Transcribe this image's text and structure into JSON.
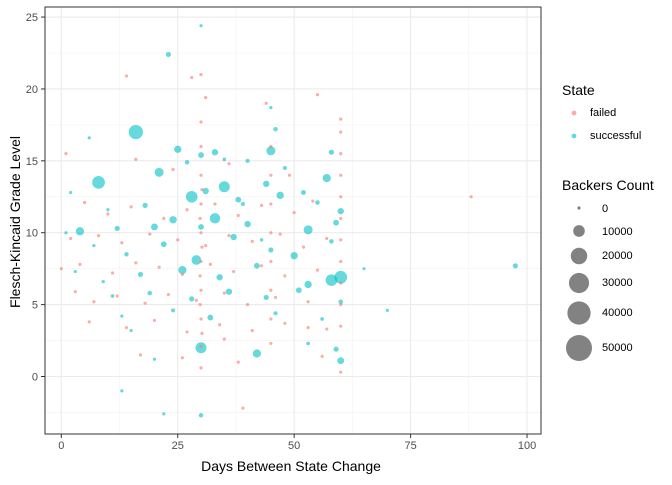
{
  "chart_data": {
    "type": "scatter",
    "title": "",
    "xlabel": "Days Between State Change",
    "ylabel": "Flesch-Kincaid Grade Level",
    "xlim": [
      -3.5,
      103
    ],
    "ylim": [
      -4,
      25.7
    ],
    "x_ticks": [
      0,
      25,
      50,
      75,
      100
    ],
    "y_ticks": [
      0,
      5,
      10,
      15,
      20,
      25
    ],
    "grid": true,
    "theme": "bw",
    "point_alpha": 0.6,
    "colors": {
      "failed": "#F8766D",
      "successful": "#00BFC4",
      "size_legend": "#4d4d4d"
    },
    "legend_position": "right",
    "color_legend": {
      "title": "State",
      "entries": [
        "failed",
        "successful"
      ]
    },
    "size_legend": {
      "title": "Backers Count",
      "entries": [
        "0",
        "10000",
        "20000",
        "30000",
        "40000",
        "50000"
      ],
      "values": [
        0,
        10000,
        20000,
        30000,
        40000,
        50000
      ]
    },
    "series": [
      {
        "name": "successful",
        "points": [
          [
            30,
            24.4,
            100
          ],
          [
            23,
            22.4,
            2000
          ],
          [
            45,
            18.7,
            800
          ],
          [
            46,
            17.2,
            1500
          ],
          [
            16,
            17.0,
            15000
          ],
          [
            6,
            16.6,
            200
          ],
          [
            25,
            15.8,
            4000
          ],
          [
            30,
            15.4,
            2500
          ],
          [
            33,
            15.6,
            3000
          ],
          [
            40,
            15.0,
            1200
          ],
          [
            45,
            15.7,
            6000
          ],
          [
            58,
            15.6,
            2000
          ],
          [
            8,
            13.5,
            12000
          ],
          [
            21,
            14.2,
            6000
          ],
          [
            35,
            13.2,
            9000
          ],
          [
            44,
            13.4,
            3000
          ],
          [
            57,
            13.8,
            5000
          ],
          [
            2,
            12.8,
            400
          ],
          [
            10,
            11.6,
            300
          ],
          [
            18,
            11.9,
            2000
          ],
          [
            28,
            12.5,
            10000
          ],
          [
            31,
            12.9,
            3000
          ],
          [
            38,
            12.3,
            2500
          ],
          [
            47,
            12.6,
            4000
          ],
          [
            55,
            12.1,
            1500
          ],
          [
            60,
            11.5,
            3000
          ],
          [
            4,
            10.1,
            5000
          ],
          [
            12,
            10.3,
            2000
          ],
          [
            20,
            10.4,
            3500
          ],
          [
            24,
            10.9,
            4000
          ],
          [
            33,
            11.0,
            8000
          ],
          [
            40,
            10.6,
            3000
          ],
          [
            53,
            10.2,
            6000
          ],
          [
            59,
            10.7,
            2500
          ],
          [
            7,
            9.1,
            500
          ],
          [
            14,
            8.5,
            1500
          ],
          [
            22,
            9.2,
            2500
          ],
          [
            29,
            8.1,
            7000
          ],
          [
            37,
            9.7,
            3000
          ],
          [
            45,
            8.8,
            2000
          ],
          [
            50,
            8.4,
            4000
          ],
          [
            58,
            9.4,
            1500
          ],
          [
            3,
            7.3,
            300
          ],
          [
            9,
            6.6,
            800
          ],
          [
            17,
            7.1,
            2000
          ],
          [
            26,
            7.4,
            5000
          ],
          [
            34,
            6.9,
            3000
          ],
          [
            42,
            7.7,
            2500
          ],
          [
            53,
            6.4,
            4000
          ],
          [
            58,
            6.7,
            10000
          ],
          [
            60,
            6.9,
            12000
          ],
          [
            97.5,
            7.7,
            2000
          ],
          [
            70,
            4.6,
            150
          ],
          [
            11,
            5.6,
            1000
          ],
          [
            19,
            5.8,
            1500
          ],
          [
            28,
            5.4,
            2000
          ],
          [
            36,
            5.9,
            3000
          ],
          [
            44,
            5.5,
            2000
          ],
          [
            51,
            6.0,
            2500
          ],
          [
            60,
            5.2,
            1500
          ],
          [
            13,
            4.2,
            700
          ],
          [
            24,
            4.6,
            1200
          ],
          [
            32,
            4.1,
            2500
          ],
          [
            46,
            4.4,
            1200
          ],
          [
            56,
            4.0,
            1000
          ],
          [
            30,
            2.0,
            9000
          ],
          [
            42,
            1.6,
            5000
          ],
          [
            53,
            2.3,
            1000
          ],
          [
            59,
            1.9,
            2000
          ],
          [
            60,
            1.1,
            3500
          ],
          [
            15,
            3.2,
            200
          ],
          [
            20,
            1.2,
            300
          ],
          [
            13,
            -1.0,
            100
          ],
          [
            22,
            -2.6,
            100
          ],
          [
            30,
            -2.7,
            1500
          ],
          [
            35,
            15.1,
            1000
          ],
          [
            27,
            14.9,
            1500
          ],
          [
            48,
            14.5,
            1200
          ],
          [
            65,
            7.5,
            150
          ],
          [
            1,
            10.0,
            200
          ],
          [
            39,
            12.0,
            1200
          ],
          [
            52,
            12.8,
            1800
          ],
          [
            43,
            9.5,
            900
          ],
          [
            30,
            10.4,
            2500
          ]
        ]
      },
      {
        "name": "failed",
        "points": [
          [
            30,
            21.0,
            100
          ],
          [
            28,
            20.8,
            100
          ],
          [
            14,
            20.9,
            100
          ],
          [
            55,
            19.6,
            100
          ],
          [
            31,
            19.4,
            100
          ],
          [
            44,
            19.0,
            100
          ],
          [
            30,
            17.7,
            100
          ],
          [
            60,
            17.9,
            100
          ],
          [
            1,
            15.5,
            100
          ],
          [
            16,
            15.1,
            100
          ],
          [
            24,
            14.4,
            100
          ],
          [
            36,
            14.8,
            100
          ],
          [
            49,
            14.0,
            100
          ],
          [
            88,
            12.5,
            100
          ],
          [
            5,
            12.1,
            100
          ],
          [
            10,
            11.3,
            100
          ],
          [
            15,
            11.8,
            100
          ],
          [
            22,
            11.0,
            100
          ],
          [
            27,
            11.6,
            100
          ],
          [
            33,
            12.0,
            100
          ],
          [
            38,
            11.2,
            100
          ],
          [
            43,
            11.9,
            100
          ],
          [
            50,
            11.4,
            100
          ],
          [
            54,
            12.2,
            100
          ],
          [
            2,
            9.6,
            100
          ],
          [
            8,
            9.8,
            100
          ],
          [
            13,
            9.3,
            100
          ],
          [
            19,
            9.9,
            100
          ],
          [
            25,
            9.5,
            100
          ],
          [
            31,
            9.1,
            100
          ],
          [
            36,
            9.8,
            100
          ],
          [
            41,
            9.4,
            100
          ],
          [
            47,
            9.9,
            100
          ],
          [
            52,
            9.0,
            100
          ],
          [
            57,
            9.6,
            100
          ],
          [
            0,
            7.5,
            100
          ],
          [
            4,
            7.8,
            100
          ],
          [
            11,
            7.2,
            100
          ],
          [
            16,
            7.9,
            100
          ],
          [
            21,
            7.6,
            100
          ],
          [
            26,
            7.1,
            100
          ],
          [
            32,
            7.8,
            100
          ],
          [
            37,
            7.3,
            100
          ],
          [
            43,
            7.7,
            100
          ],
          [
            48,
            7.0,
            100
          ],
          [
            55,
            7.4,
            100
          ],
          [
            3,
            5.9,
            100
          ],
          [
            7,
            5.2,
            100
          ],
          [
            12,
            5.6,
            100
          ],
          [
            18,
            5.1,
            100
          ],
          [
            23,
            5.7,
            100
          ],
          [
            29,
            5.3,
            100
          ],
          [
            35,
            5.8,
            100
          ],
          [
            40,
            5.0,
            100
          ],
          [
            46,
            5.5,
            100
          ],
          [
            53,
            5.2,
            100
          ],
          [
            6,
            3.8,
            100
          ],
          [
            14,
            3.4,
            100
          ],
          [
            20,
            3.9,
            100
          ],
          [
            27,
            3.1,
            100
          ],
          [
            34,
            3.6,
            100
          ],
          [
            41,
            3.2,
            100
          ],
          [
            48,
            3.7,
            100
          ],
          [
            57,
            3.3,
            100
          ],
          [
            17,
            1.5,
            100
          ],
          [
            26,
            1.3,
            100
          ],
          [
            38,
            1.0,
            100
          ],
          [
            56,
            1.4,
            100
          ],
          [
            30,
            0.6,
            100
          ],
          [
            39,
            -2.2,
            100
          ],
          [
            60,
            0.3,
            100
          ],
          [
            35,
            2.6,
            100
          ],
          [
            45,
            2.3,
            100
          ],
          [
            53,
            3.4,
            100
          ],
          [
            30,
            2.1,
            300
          ],
          [
            30,
            4.0,
            300
          ],
          [
            30,
            6.0,
            300
          ],
          [
            30,
            8.0,
            300
          ],
          [
            30,
            10.0,
            300
          ],
          [
            30,
            12.0,
            300
          ],
          [
            30,
            14.0,
            300
          ],
          [
            30,
            16.0,
            200
          ],
          [
            29.8,
            7.0,
            300
          ],
          [
            30.2,
            9.0,
            300
          ],
          [
            29.8,
            11.0,
            300
          ],
          [
            30.2,
            13.0,
            300
          ],
          [
            29.8,
            5.0,
            300
          ],
          [
            30.2,
            3.0,
            300
          ],
          [
            60,
            3.5,
            100
          ],
          [
            60,
            5.0,
            100
          ],
          [
            60,
            6.5,
            100
          ],
          [
            60,
            8.0,
            100
          ],
          [
            60,
            9.5,
            100
          ],
          [
            60,
            11.0,
            100
          ],
          [
            60,
            12.5,
            100
          ],
          [
            60,
            14.0,
            100
          ],
          [
            60,
            15.5,
            100
          ],
          [
            60,
            17.0,
            100
          ],
          [
            45,
            4.0,
            100
          ],
          [
            45,
            6.0,
            100
          ],
          [
            45,
            8.0,
            100
          ],
          [
            45,
            10.0,
            100
          ],
          [
            45,
            12.0,
            100
          ],
          [
            45,
            14.0,
            100
          ],
          [
            45,
            16.0,
            100
          ]
        ]
      }
    ]
  }
}
